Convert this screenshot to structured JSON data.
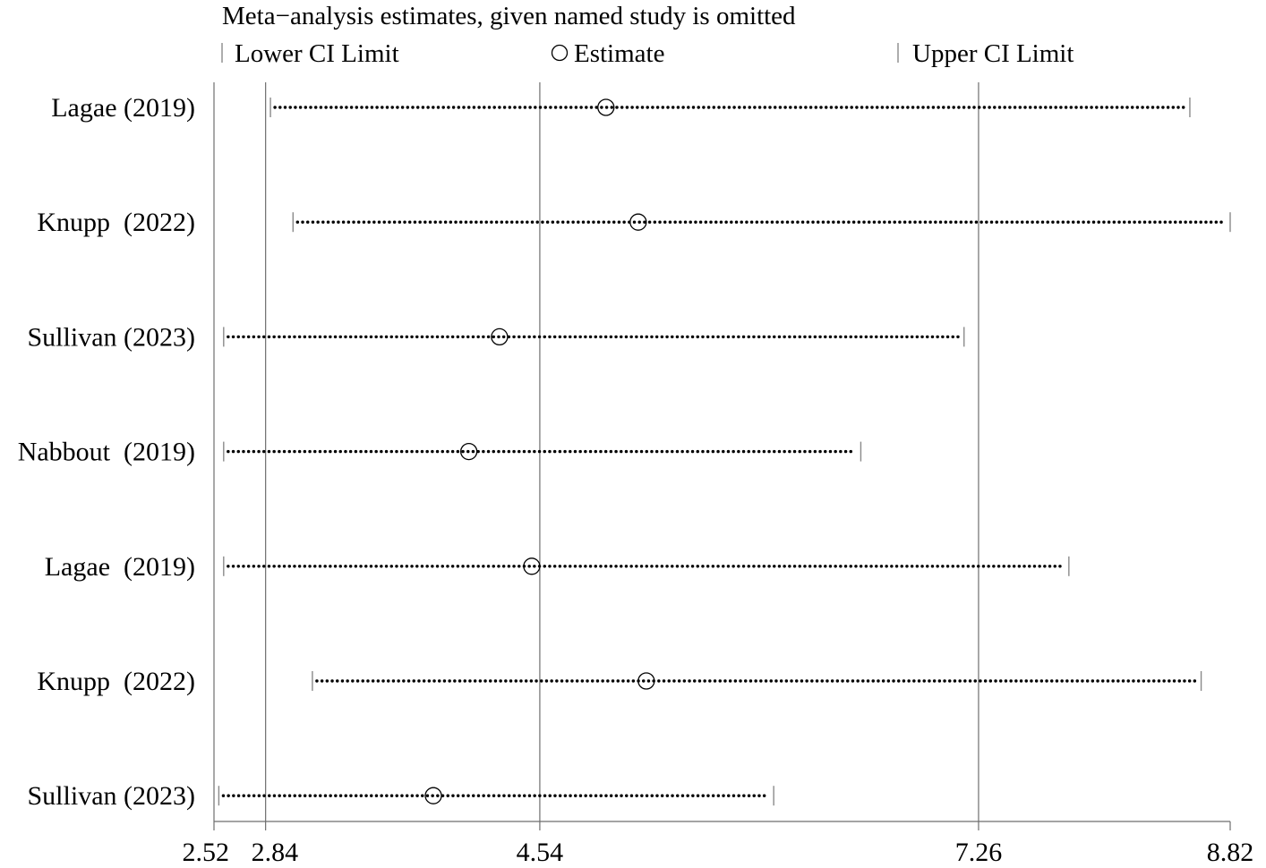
{
  "chart_data": {
    "type": "forest",
    "title": "Meta−analysis estimates, given named study is omitted",
    "legend": {
      "lower": "Lower CI Limit",
      "estimate": "Estimate",
      "upper": "Upper CI Limit",
      "placement": "top"
    },
    "xlim": [
      2.52,
      8.82
    ],
    "xticks": [
      2.52,
      2.84,
      4.54,
      7.26,
      8.82
    ],
    "xtick_labels": [
      "2.52",
      "2.84",
      "4.54",
      "7.26",
      "8.82"
    ],
    "reference_lines": [
      2.84,
      4.54,
      7.26
    ],
    "studies": [
      {
        "label": "Lagae (2019)",
        "lower": 2.87,
        "estimate": 4.95,
        "upper": 8.57
      },
      {
        "label": "Knupp  (2022)",
        "lower": 3.01,
        "estimate": 5.15,
        "upper": 8.82
      },
      {
        "label": "Sullivan (2023)",
        "lower": 2.58,
        "estimate": 4.29,
        "upper": 7.17
      },
      {
        "label": "Nabbout  (2019)",
        "lower": 2.58,
        "estimate": 4.1,
        "upper": 6.53
      },
      {
        "label": "Lagae  (2019)",
        "lower": 2.58,
        "estimate": 4.49,
        "upper": 7.82
      },
      {
        "label": "Knupp  (2022)",
        "lower": 3.13,
        "estimate": 5.2,
        "upper": 8.64
      },
      {
        "label": "Sullivan (2023)",
        "lower": 2.55,
        "estimate": 3.88,
        "upper": 5.99
      }
    ]
  }
}
